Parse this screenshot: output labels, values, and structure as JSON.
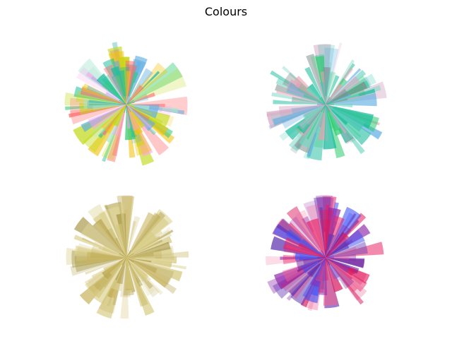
{
  "figure_title": "Colours",
  "chart_data": [
    {
      "type": "polar-bar",
      "position": "top-left",
      "colors": [
        "#f4c20d",
        "#2ecc71",
        "#1abc9c",
        "#ff6b6b",
        "#5dade2",
        "#a8e6cf",
        "#ff9ff3",
        "#c0d914"
      ],
      "alpha_range": [
        0.2,
        0.75
      ],
      "axes_visible": false,
      "seed": 11
    },
    {
      "type": "polar-bar",
      "position": "top-right",
      "colors": [
        "#1abc9c",
        "#2ecc71",
        "#48c9b0",
        "#5dade2",
        "#7f8c8d",
        "#d7a9c4",
        "#76d7c4",
        "#e8a0b0"
      ],
      "alpha_range": [
        0.2,
        0.75
      ],
      "axes_visible": false,
      "seed": 23
    },
    {
      "type": "polar-bar",
      "position": "bottom-left",
      "colors": [
        "#c8b560",
        "#d4c77a",
        "#b8a552",
        "#e0d59a",
        "#a89848",
        "#d9cc85"
      ],
      "alpha_range": [
        0.2,
        0.75
      ],
      "axes_visible": false,
      "seed": 37
    },
    {
      "type": "polar-bar",
      "position": "bottom-right",
      "colors": [
        "#8e24aa",
        "#3f51f5",
        "#e91e63",
        "#d81b60",
        "#6a1b9a",
        "#ec407a",
        "#5e35b1",
        "#f06292"
      ],
      "alpha_range": [
        0.2,
        0.75
      ],
      "axes_visible": false,
      "seed": 53
    }
  ]
}
